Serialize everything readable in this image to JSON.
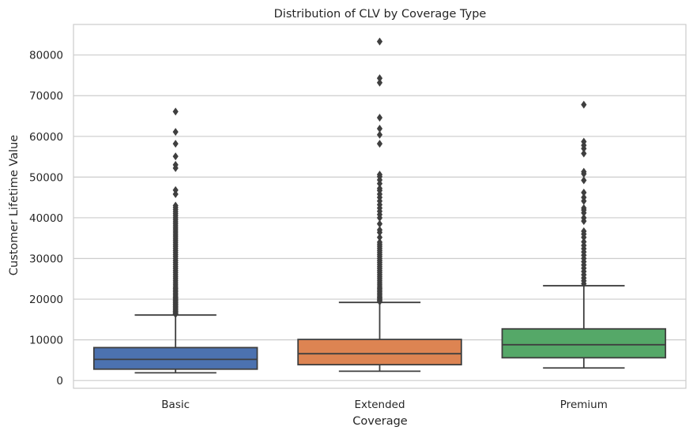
{
  "chart_data": {
    "type": "box",
    "title": "Distribution of CLV by Coverage Type",
    "xlabel": "Coverage",
    "ylabel": "Customer Lifetime Value",
    "ylim": [
      -1900,
      87500
    ],
    "yticks": [
      0,
      10000,
      20000,
      30000,
      40000,
      50000,
      60000,
      70000,
      80000
    ],
    "ytick_labels": [
      "0",
      "10000",
      "20000",
      "30000",
      "40000",
      "50000",
      "60000",
      "70000",
      "80000"
    ],
    "grid": "horizontal",
    "categories": [
      "Basic",
      "Extended",
      "Premium"
    ],
    "boxes": [
      {
        "category": "Basic",
        "color": "#4c72b0",
        "whisker_low": 1900,
        "q1": 2800,
        "median": 5200,
        "q3": 8100,
        "whisker_high": 16100,
        "outliers": [
          16300,
          16500,
          16800,
          17000,
          17300,
          17600,
          17900,
          18200,
          18500,
          18800,
          19100,
          19400,
          19700,
          20000,
          20300,
          20600,
          21000,
          21400,
          21800,
          22200,
          22600,
          23000,
          23500,
          24000,
          24500,
          25000,
          25500,
          26000,
          26500,
          27000,
          27500,
          28000,
          28500,
          29000,
          29500,
          30000,
          30500,
          31000,
          31500,
          32000,
          32500,
          33000,
          33500,
          34000,
          34500,
          35000,
          35500,
          36000,
          36500,
          37000,
          37500,
          38000,
          38500,
          39000,
          39500,
          40000,
          40500,
          41000,
          41500,
          42000,
          42500,
          43000,
          45800,
          46800,
          52200,
          53000,
          55100,
          58200,
          61100,
          66100
        ]
      },
      {
        "category": "Extended",
        "color": "#dd8452",
        "whisker_low": 2300,
        "q1": 3900,
        "median": 6600,
        "q3": 10100,
        "whisker_high": 19200,
        "outliers": [
          19400,
          19700,
          20000,
          20300,
          20600,
          21000,
          21400,
          21800,
          22200,
          22600,
          23000,
          23500,
          24000,
          24500,
          25000,
          25500,
          26000,
          26500,
          27000,
          27500,
          28000,
          28500,
          29000,
          29500,
          30000,
          30500,
          31000,
          31500,
          32000,
          32500,
          33000,
          33500,
          34000,
          35200,
          36400,
          37000,
          38500,
          40000,
          40800,
          41600,
          42400,
          43200,
          44100,
          45000,
          45800,
          46700,
          47200,
          48400,
          49300,
          50100,
          50600,
          58200,
          60400,
          61900,
          64600,
          73200,
          74300,
          83300
        ]
      },
      {
        "category": "Premium",
        "color": "#55a868",
        "whisker_low": 3100,
        "q1": 5600,
        "median": 8800,
        "q3": 12700,
        "whisker_high": 23300,
        "outliers": [
          23800,
          24500,
          25200,
          26000,
          26800,
          27600,
          28400,
          29200,
          30000,
          30800,
          31600,
          32400,
          33200,
          34100,
          35200,
          36000,
          36700,
          39200,
          40000,
          41200,
          41900,
          42400,
          44100,
          45000,
          46200,
          49200,
          50800,
          51300,
          55800,
          57000,
          57800,
          58700,
          67800
        ]
      }
    ]
  }
}
